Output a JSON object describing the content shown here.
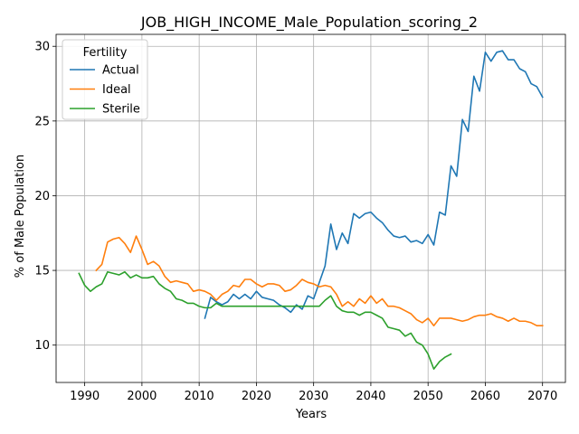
{
  "chart_data": {
    "type": "line",
    "title": "JOB_HIGH_INCOME_Male_Population_scoring_2",
    "xlabel": "Years",
    "ylabel": "% of Male Population",
    "xlim": [
      1985,
      2074
    ],
    "ylim": [
      7.5,
      30.8
    ],
    "xticks": [
      1990,
      2000,
      2010,
      2020,
      2030,
      2040,
      2050,
      2060,
      2070
    ],
    "yticks": [
      10,
      15,
      20,
      25,
      30
    ],
    "grid": true,
    "legend": {
      "title": "Fertility",
      "placement": "top-left"
    },
    "series": [
      {
        "name": "Actual",
        "color": "#1f77b4",
        "x": [
          2011,
          2012,
          2013,
          2014,
          2015,
          2016,
          2017,
          2018,
          2019,
          2020,
          2021,
          2022,
          2023,
          2024,
          2025,
          2026,
          2027,
          2028,
          2029,
          2030,
          2031,
          2032,
          2033,
          2034,
          2035,
          2036,
          2037,
          2038,
          2039,
          2040,
          2041,
          2042,
          2043,
          2044,
          2045,
          2046,
          2047,
          2048,
          2049,
          2050,
          2051,
          2052,
          2053,
          2054,
          2055,
          2056,
          2057,
          2058,
          2059,
          2060,
          2061,
          2062,
          2063,
          2064,
          2065,
          2066,
          2067,
          2068,
          2069,
          2070
        ],
        "values": [
          11.8,
          13.2,
          12.9,
          12.7,
          12.9,
          13.4,
          13.1,
          13.4,
          13.1,
          13.6,
          13.2,
          13.1,
          13.0,
          12.7,
          12.5,
          12.2,
          12.7,
          12.4,
          13.3,
          13.1,
          14.2,
          15.3,
          18.1,
          16.4,
          17.5,
          16.8,
          18.8,
          18.5,
          18.8,
          18.9,
          18.5,
          18.2,
          17.7,
          17.3,
          17.2,
          17.3,
          16.9,
          17.0,
          16.8,
          17.4,
          16.7,
          18.9,
          18.7,
          22.0,
          21.3,
          25.1,
          24.3,
          28.0,
          27.0,
          29.6,
          29.0,
          29.6,
          29.7,
          29.1,
          29.1,
          28.5,
          28.3,
          27.5,
          27.3,
          26.6
        ]
      },
      {
        "name": "Ideal",
        "color": "#ff7f0e",
        "x": [
          1992,
          1993,
          1994,
          1995,
          1996,
          1997,
          1998,
          1999,
          2000,
          2001,
          2002,
          2003,
          2004,
          2005,
          2006,
          2007,
          2008,
          2009,
          2010,
          2011,
          2012,
          2013,
          2014,
          2015,
          2016,
          2017,
          2018,
          2019,
          2020,
          2021,
          2022,
          2023,
          2024,
          2025,
          2026,
          2027,
          2028,
          2029,
          2030,
          2031,
          2032,
          2033,
          2034,
          2035,
          2036,
          2037,
          2038,
          2039,
          2040,
          2041,
          2042,
          2043,
          2044,
          2045,
          2046,
          2047,
          2048,
          2049,
          2050,
          2051,
          2052,
          2053,
          2054,
          2055,
          2056,
          2057,
          2058,
          2059,
          2060,
          2061,
          2062,
          2063,
          2064,
          2065,
          2066,
          2067,
          2068,
          2069,
          2070
        ],
        "values": [
          15.0,
          15.4,
          16.9,
          17.1,
          17.2,
          16.8,
          16.2,
          17.3,
          16.4,
          15.4,
          15.6,
          15.3,
          14.6,
          14.2,
          14.3,
          14.2,
          14.1,
          13.6,
          13.7,
          13.6,
          13.4,
          13.0,
          13.4,
          13.6,
          14.0,
          13.9,
          14.4,
          14.4,
          14.1,
          13.9,
          14.1,
          14.1,
          14.0,
          13.6,
          13.7,
          14.0,
          14.4,
          14.2,
          14.1,
          13.9,
          14.0,
          13.9,
          13.4,
          12.6,
          12.9,
          12.6,
          13.1,
          12.8,
          13.3,
          12.8,
          13.1,
          12.6,
          12.6,
          12.5,
          12.3,
          12.1,
          11.7,
          11.5,
          11.8,
          11.3,
          11.8,
          11.8,
          11.8,
          11.7,
          11.6,
          11.7,
          11.9,
          12.0,
          12.0,
          12.1,
          11.9,
          11.8,
          11.6,
          11.8,
          11.6,
          11.6,
          11.5,
          11.3,
          11.3
        ]
      },
      {
        "name": "Sterile",
        "color": "#2ca02c",
        "x": [
          1989,
          1990,
          1991,
          1992,
          1993,
          1994,
          1995,
          1996,
          1997,
          1998,
          1999,
          2000,
          2001,
          2002,
          2003,
          2004,
          2005,
          2006,
          2007,
          2008,
          2009,
          2010,
          2011,
          2012,
          2013,
          2014,
          2015,
          2016,
          2017,
          2018,
          2019,
          2020,
          2021,
          2022,
          2023,
          2024,
          2025,
          2026,
          2027,
          2028,
          2029,
          2030,
          2031,
          2032,
          2033,
          2034,
          2035,
          2036,
          2037,
          2038,
          2039,
          2040,
          2041,
          2042,
          2043,
          2044,
          2045,
          2046,
          2047,
          2048,
          2049,
          2050,
          2051,
          2052,
          2053,
          2054
        ],
        "values": [
          14.8,
          14.0,
          13.6,
          13.9,
          14.1,
          14.9,
          14.8,
          14.7,
          14.9,
          14.5,
          14.7,
          14.5,
          14.5,
          14.6,
          14.1,
          13.8,
          13.6,
          13.1,
          13.0,
          12.8,
          12.8,
          12.6,
          12.5,
          12.5,
          12.8,
          12.6,
          12.6,
          12.6,
          12.6,
          12.6,
          12.6,
          12.6,
          12.6,
          12.6,
          12.6,
          12.6,
          12.6,
          12.6,
          12.6,
          12.6,
          12.6,
          12.6,
          12.6,
          13.0,
          13.3,
          12.6,
          12.3,
          12.2,
          12.2,
          12.0,
          12.2,
          12.2,
          12.0,
          11.8,
          11.2,
          11.1,
          11.0,
          10.6,
          10.8,
          10.2,
          10.0,
          9.4,
          8.4,
          8.9,
          9.2,
          9.4
        ]
      }
    ]
  }
}
